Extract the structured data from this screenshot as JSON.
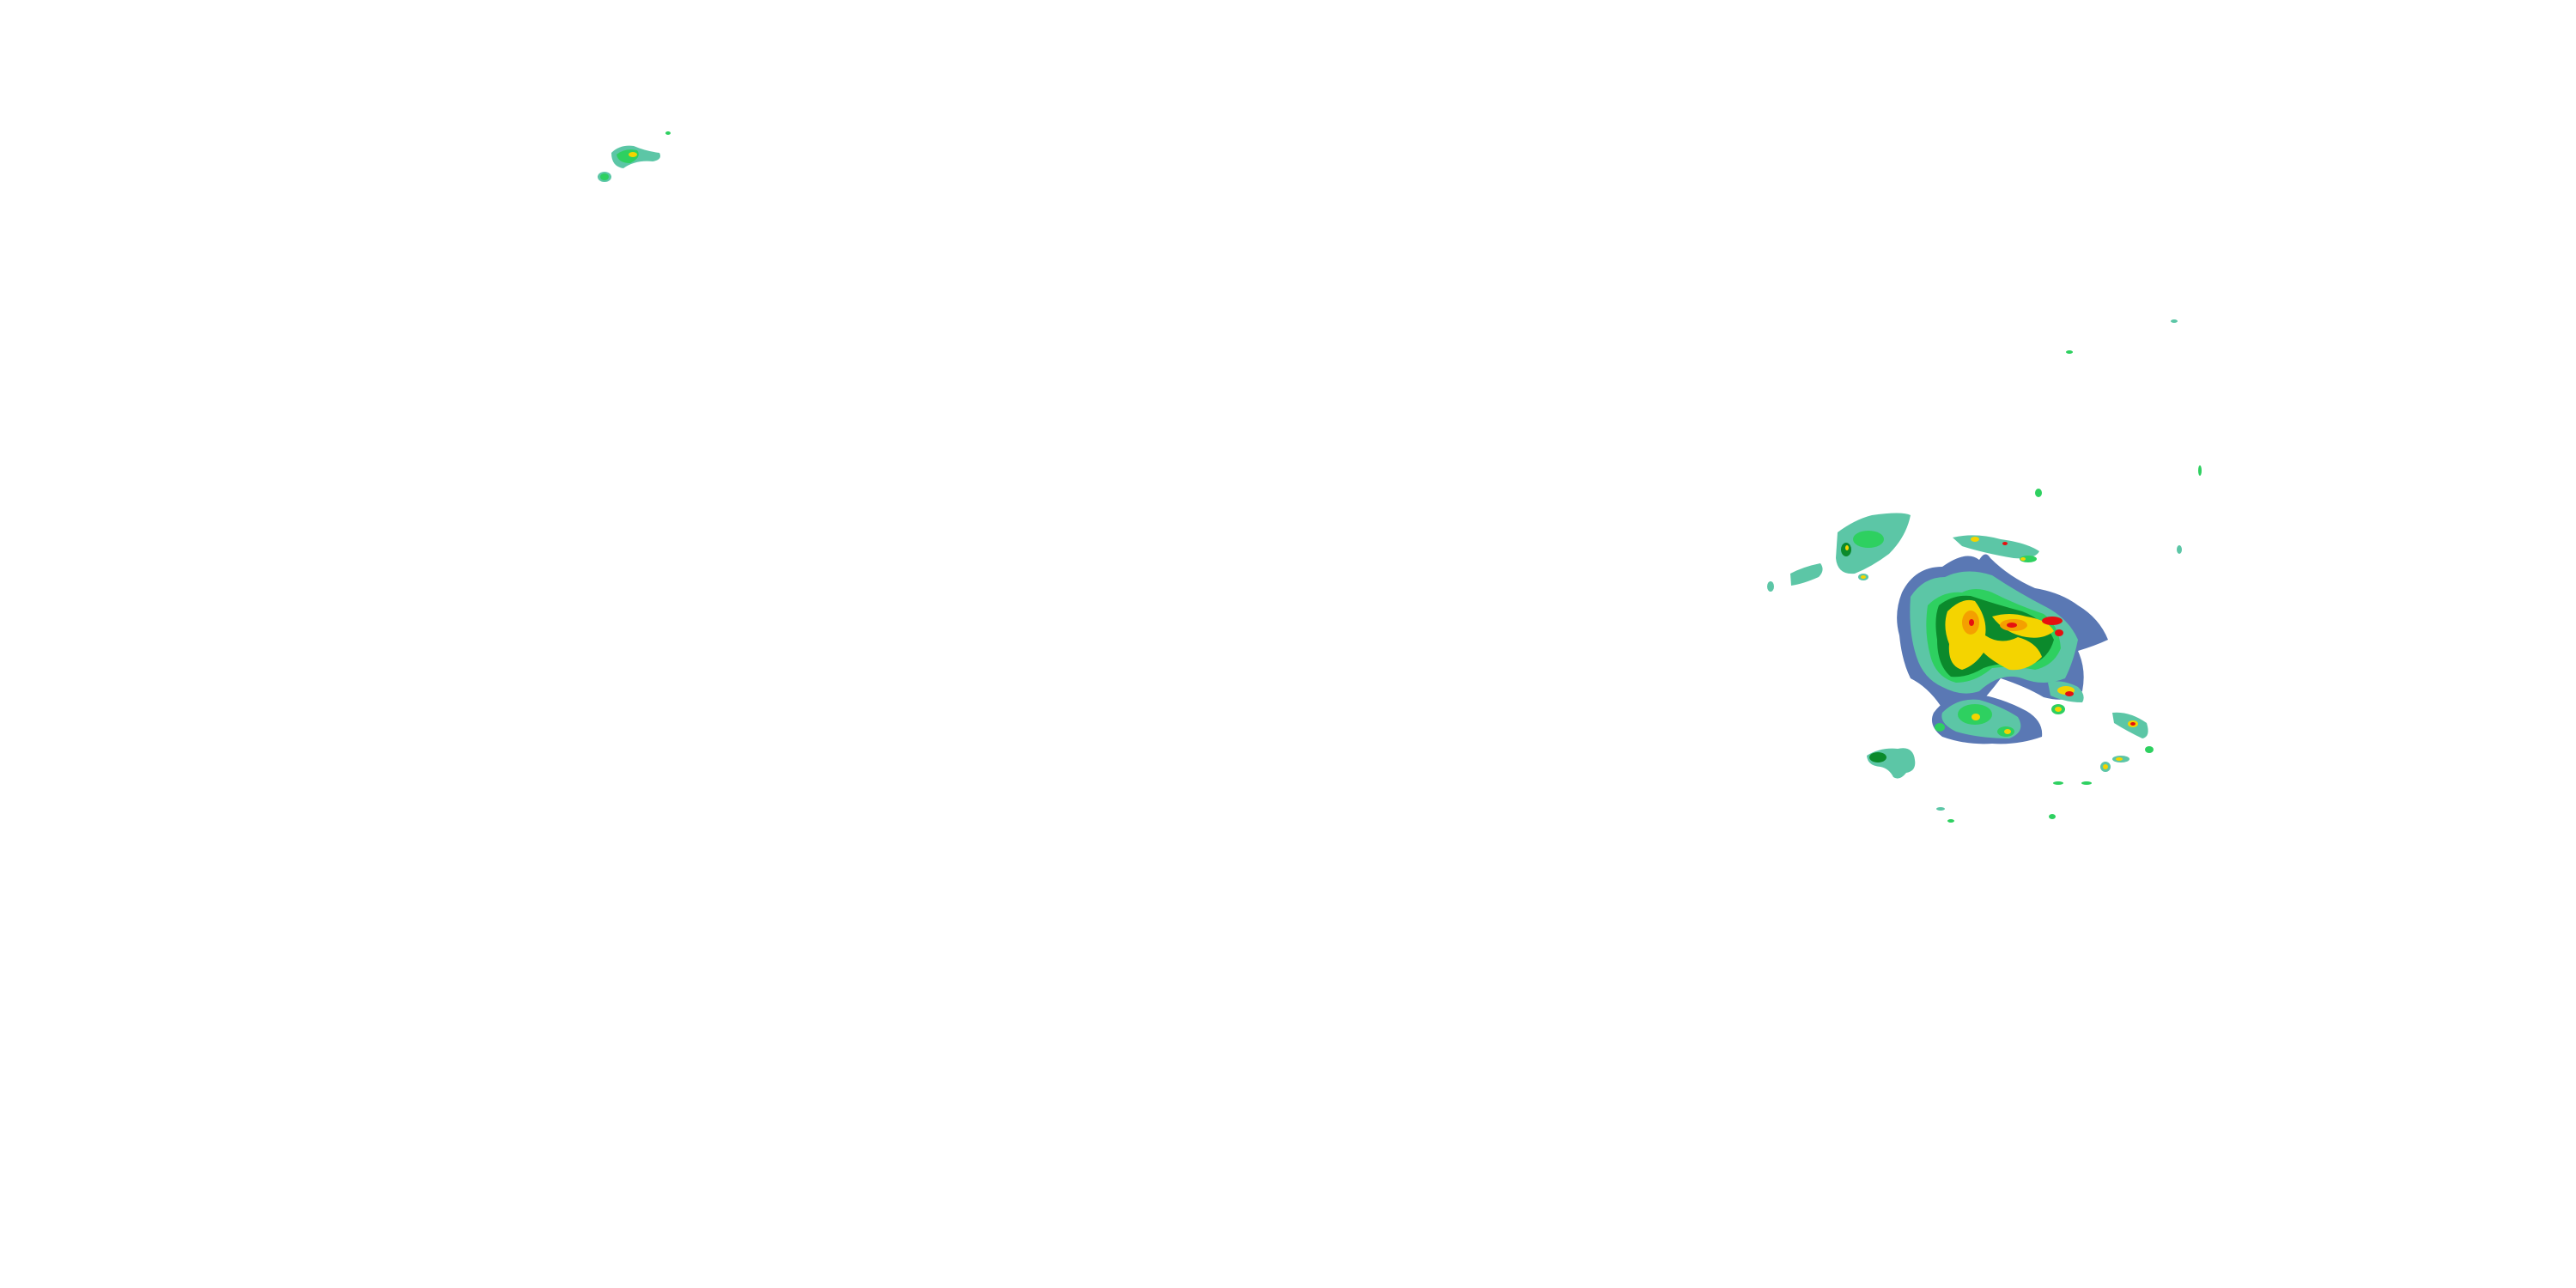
{
  "map": {
    "type": "weather-radar-reflectivity",
    "background": "#ffffff",
    "colors": {
      "very_light": "#5a78b4",
      "light": "#5cc6a6",
      "moderate": "#2ed060",
      "moderate_heavy": "#0b8a2c",
      "heavy": "#f4d400",
      "very_heavy": "#f4a000",
      "extreme": "#e61010"
    }
  }
}
